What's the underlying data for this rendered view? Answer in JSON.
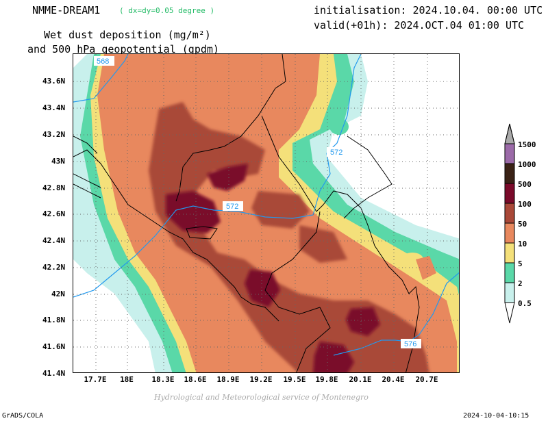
{
  "header": {
    "model": "NMME-DREAM1",
    "resolution": "( dx=dy=0.05 degree )",
    "variable_line1": "Wet dust deposition (mg/m²)",
    "variable_line2": "and 500 hPa geopotential (gpdm)",
    "initialisation": "initialisation: 2024.10.04. 00:00 UTC",
    "valid": "valid(+01h): 2024.OCT.04 01:00 UTC"
  },
  "map": {
    "lat_labels": [
      "43.6N",
      "43.4N",
      "43.2N",
      "43N",
      "42.8N",
      "42.6N",
      "42.4N",
      "42.2N",
      "42N",
      "41.8N",
      "41.6N",
      "41.4N"
    ],
    "lon_labels": [
      "17.7E",
      "18E",
      "18.3E",
      "18.6E",
      "18.9E",
      "19.2E",
      "19.5E",
      "19.8E",
      "20.1E",
      "20.4E",
      "20.7E"
    ],
    "contour_labels": [
      "568",
      "572",
      "572",
      "576"
    ],
    "palette": [
      "#c8f0ec",
      "#5ad8a8",
      "#f4e07a",
      "#e8885e",
      "#a94838",
      "#7a0a2a",
      "#3a2216",
      "#9b6aa8"
    ]
  },
  "colorbar": {
    "labels": [
      "1500",
      "1000",
      "500",
      "100",
      "50",
      "10",
      "5",
      "2",
      "0.5"
    ],
    "colors": [
      "#9b6aa8",
      "#3a2216",
      "#7a0a2a",
      "#a94838",
      "#e8885e",
      "#f4e07a",
      "#5ad8a8",
      "#c8f0ec"
    ]
  },
  "footer": {
    "credit": "Hydrological and Meteorological service of Montenegro",
    "software": "GrADS/COLA",
    "timestamp": "2024-10-04-10:15"
  }
}
